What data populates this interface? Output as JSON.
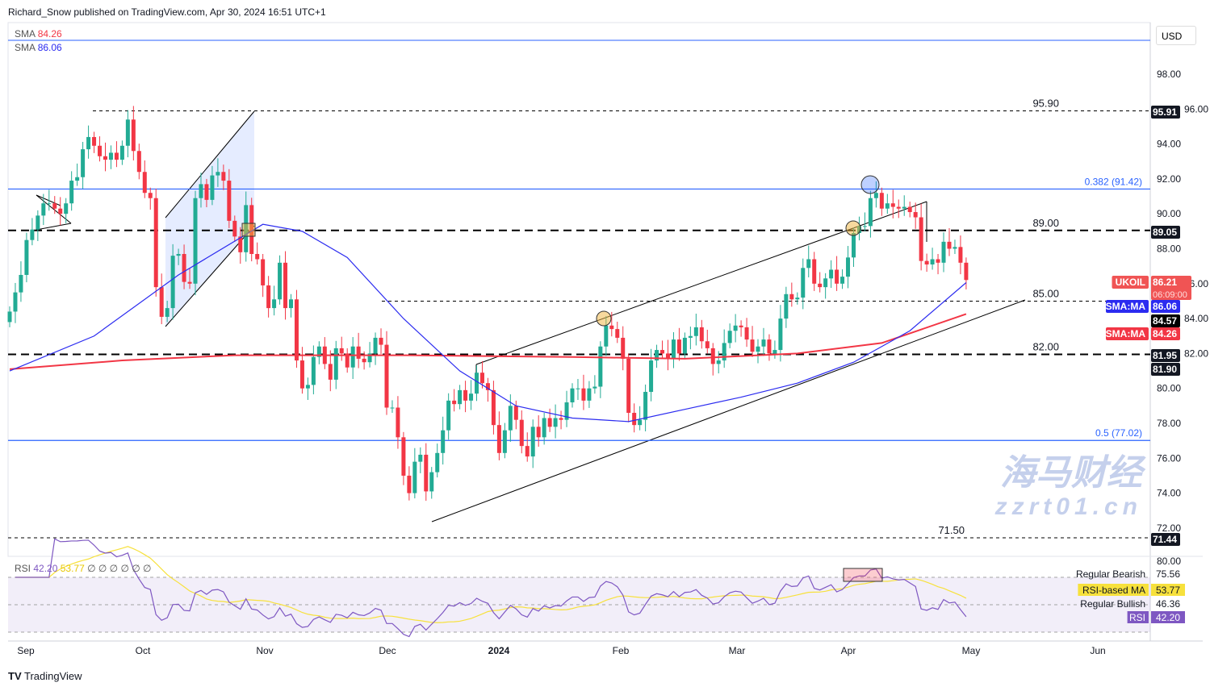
{
  "header": {
    "published": "Richard_Snow published on TradingView.com, Apr 30, 2024 16:51 UTC+1"
  },
  "legend": {
    "sma1_label": "SMA",
    "sma1_value": "84.26",
    "sma2_label": "SMA",
    "sma2_value": "86.06",
    "rsi_label": "RSI",
    "rsi_value": "42.20",
    "rsi_ma_value": "53.77",
    "rsi_extra": "∅ ∅ ∅ ∅ ∅ ∅"
  },
  "currency": "USD",
  "footer": {
    "brand": "TradingView"
  },
  "watermark": {
    "line1": "海马财经",
    "line2": "zzrt01.cn"
  },
  "colors": {
    "up": "#22ab94",
    "down": "#f23645",
    "sma200": "#f23645",
    "sma50": "#2b2bf0",
    "fib": "#2962ff",
    "rsi": "#7e57c2",
    "rsi_ma": "#f7e13c"
  },
  "chart_data": {
    "type": "candlestick",
    "symbol": "UKOIL",
    "ylim": [
      71,
      100
    ],
    "y_ticks": [
      "98.00",
      "96.00",
      "94.00",
      "92.00",
      "90.00",
      "88.00",
      "86.00",
      "84.00",
      "82.00",
      "80.00",
      "78.00",
      "76.00",
      "74.00",
      "72.00"
    ],
    "x_ticks": [
      "Sep",
      "Oct",
      "Nov",
      "Dec",
      "2024",
      "Feb",
      "Mar",
      "Apr",
      "May",
      "Jun"
    ],
    "closes": [
      84.4,
      85.5,
      86.5,
      88.5,
      89.1,
      89.9,
      90.6,
      90.6,
      90.3,
      90.0,
      90.6,
      91.9,
      92.1,
      93.7,
      94.4,
      93.9,
      93.3,
      93.1,
      93.5,
      93.1,
      93.9,
      95.4,
      93.6,
      92.4,
      91.2,
      90.9,
      85.8,
      84.1,
      84.6,
      87.6,
      87.7,
      86.1,
      86.0,
      90.9,
      91.7,
      90.8,
      92.2,
      92.4,
      91.9,
      89.6,
      88.7,
      87.8,
      90.5,
      87.7,
      87.4,
      85.9,
      84.6,
      85.1,
      87.2,
      84.6,
      85.1,
      81.6,
      80.0,
      80.2,
      81.8,
      82.4,
      81.4,
      80.5,
      82.3,
      82.0,
      81.2,
      82.4,
      81.7,
      81.5,
      82.0,
      82.9,
      82.5,
      78.9,
      78.9,
      77.2,
      75.0,
      74.0,
      75.8,
      76.2,
      74.1,
      75.2,
      76.3,
      77.6,
      79.3,
      79.1,
      79.9,
      79.3,
      79.7,
      80.9,
      80.3,
      79.9,
      77.9,
      76.3,
      77.6,
      79.0,
      78.2,
      76.7,
      76.1,
      77.8,
      77.2,
      78.3,
      77.8,
      78.3,
      78.2,
      79.2,
      80.0,
      80.0,
      79.3,
      80.0,
      80.1,
      82.4,
      83.6,
      83.4,
      82.9,
      81.7,
      78.6,
      77.9,
      78.2,
      79.8,
      81.6,
      82.2,
      82.0,
      81.7,
      82.8,
      82.0,
      82.9,
      83.0,
      83.5,
      82.7,
      82.3,
      81.4,
      81.6,
      82.6,
      83.3,
      83.6,
      83.5,
      82.8,
      82.1,
      82.4,
      82.8,
      82.0,
      82.2,
      84.0,
      85.4,
      85.1,
      85.2,
      86.9,
      87.4,
      86.0,
      85.8,
      86.3,
      86.8,
      86.0,
      86.4,
      87.5,
      88.9,
      89.3,
      89.3,
      90.9,
      91.2,
      90.3,
      90.6,
      90.4,
      90.3,
      90.4,
      90.1,
      89.8,
      87.3,
      87.1,
      87.4,
      87.2,
      88.4,
      88.0,
      88.1,
      87.2,
      86.21
    ],
    "sma50": [
      [
        0,
        81
      ],
      [
        15,
        83
      ],
      [
        30,
        86.5
      ],
      [
        45,
        89.4
      ],
      [
        52,
        89
      ],
      [
        60,
        87.5
      ],
      [
        70,
        84
      ],
      [
        80,
        81
      ],
      [
        90,
        79
      ],
      [
        100,
        78.3
      ],
      [
        110,
        78.1
      ],
      [
        120,
        78.8
      ],
      [
        130,
        79.5
      ],
      [
        140,
        80.3
      ],
      [
        150,
        81.5
      ],
      [
        160,
        83.3
      ],
      [
        170,
        86.06
      ]
    ],
    "sma200": [
      [
        0,
        81.1
      ],
      [
        20,
        81.6
      ],
      [
        40,
        81.9
      ],
      [
        70,
        81.9
      ],
      [
        100,
        81.8
      ],
      [
        120,
        81.7
      ],
      [
        140,
        82.0
      ],
      [
        155,
        82.6
      ],
      [
        170,
        84.26
      ]
    ],
    "levels": [
      {
        "label": "95.90",
        "value": 95.9,
        "style": "dash"
      },
      {
        "label": "0.382 (91.42)",
        "value": 91.42,
        "style": "fib"
      },
      {
        "label": "89.00",
        "value": 89.05,
        "style": "bigdash"
      },
      {
        "label": "85.00",
        "value": 85.0,
        "style": "dash"
      },
      {
        "label": "82.00",
        "value": 81.95,
        "style": "bigdash"
      },
      {
        "label": "0.5 (77.02)",
        "value": 77.02,
        "style": "fib"
      },
      {
        "label": "71.50",
        "value": 71.44,
        "style": "dash"
      }
    ],
    "price_tags": [
      {
        "name": "UKOIL",
        "value": "86.21",
        "sub": "06:09:00",
        "color": "#f05454"
      },
      {
        "name": "SMA:MA",
        "value": "86.06",
        "color": "#2b2bf0"
      },
      {
        "name": "",
        "value": "84.57",
        "color": "#000000"
      },
      {
        "name": "SMA:MA",
        "value": "84.26",
        "color": "#f23645"
      },
      {
        "name": "",
        "value": "81.95",
        "color": "#131722"
      },
      {
        "name": "",
        "value": "81.90",
        "color": "#131722"
      },
      {
        "name": "",
        "value": "95.91",
        "color": "#131722"
      },
      {
        "name": "",
        "value": "89.05",
        "color": "#131722"
      },
      {
        "name": "",
        "value": "71.44",
        "color": "#131722"
      }
    ],
    "rsi_tags": [
      {
        "name": "Regular Bearish",
        "value": "75.56"
      },
      {
        "name": "RSI-based MA",
        "value": "53.77"
      },
      {
        "name": "Regular Bullish",
        "value": "46.36"
      },
      {
        "name": "RSI",
        "value": "42.20"
      }
    ],
    "rsi_top_tick": "80.00"
  }
}
